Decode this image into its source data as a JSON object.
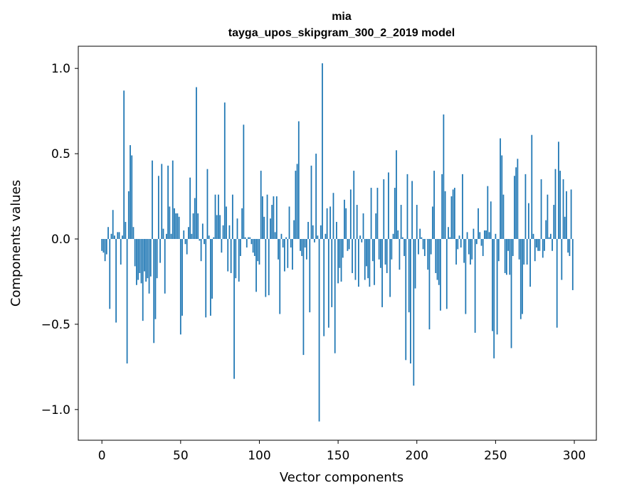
{
  "chart_data": {
    "type": "bar",
    "title_line1": "mia",
    "title_line2": "tayga_upos_skipgram_300_2_2019 model",
    "xlabel": "Vector components",
    "ylabel": "Components values",
    "xlim": [
      -15,
      314
    ],
    "ylim": [
      -1.18,
      1.13
    ],
    "xticks": [
      0,
      50,
      100,
      150,
      200,
      250,
      300
    ],
    "yticks": [
      1.0,
      0.5,
      0.0,
      -0.5,
      -1.0
    ],
    "ytick_labels": [
      "1.0",
      "0.5",
      "0.0",
      "−0.5",
      "−1.0"
    ],
    "bar_color": "#1f77b4",
    "values": [
      -0.07,
      -0.08,
      -0.13,
      -0.09,
      0.07,
      -0.41,
      0.03,
      0.17,
      0.02,
      -0.49,
      0.04,
      0.04,
      -0.15,
      0.02,
      0.87,
      0.1,
      -0.73,
      0.28,
      0.55,
      0.49,
      0.07,
      -0.16,
      -0.27,
      -0.24,
      -0.2,
      -0.26,
      -0.48,
      -0.19,
      -0.25,
      -0.23,
      -0.32,
      -0.22,
      0.46,
      -0.61,
      -0.47,
      -0.23,
      0.37,
      -0.14,
      0.44,
      0.06,
      -0.32,
      0.03,
      0.43,
      0.19,
      0.03,
      0.46,
      0.18,
      0.15,
      0.15,
      0.13,
      -0.56,
      -0.45,
      0.05,
      -0.03,
      -0.09,
      0.07,
      0.36,
      0.03,
      0.15,
      0.24,
      0.89,
      0.15,
      -0.01,
      -0.13,
      0.09,
      -0.03,
      -0.46,
      0.41,
      0.02,
      -0.45,
      -0.35,
      0.01,
      0.26,
      0.14,
      0.26,
      0.14,
      -0.08,
      0.08,
      0.8,
      0.19,
      -0.19,
      0.08,
      -0.2,
      0.26,
      -0.82,
      -0.23,
      0.12,
      -0.25,
      -0.1,
      0.18,
      0.67,
      0.01,
      -0.05,
      0.01,
      0.01,
      -0.03,
      -0.08,
      -0.1,
      -0.31,
      -0.13,
      -0.15,
      0.4,
      0.25,
      0.13,
      -0.34,
      0.26,
      -0.33,
      0.12,
      0.2,
      0.25,
      0.04,
      0.25,
      -0.12,
      -0.44,
      0.03,
      -0.05,
      -0.19,
      0.01,
      -0.17,
      0.19,
      -0.05,
      -0.18,
      0.11,
      0.4,
      0.44,
      0.69,
      -0.07,
      -0.1,
      -0.68,
      -0.05,
      -0.12,
      0.1,
      -0.43,
      0.43,
      0.08,
      -0.02,
      0.5,
      0.02,
      -1.07,
      0.08,
      1.03,
      -0.57,
      0.03,
      0.18,
      -0.52,
      0.19,
      -0.4,
      0.27,
      -0.67,
      0.1,
      -0.26,
      -0.17,
      -0.25,
      -0.11,
      0.23,
      0.18,
      -0.07,
      -0.06,
      0.29,
      -0.2,
      0.4,
      -0.24,
      0.2,
      -0.28,
      0.02,
      -0.02,
      0.15,
      -0.24,
      -0.16,
      -0.23,
      -0.28,
      0.3,
      -0.13,
      -0.27,
      0.15,
      0.3,
      -0.12,
      -0.17,
      -0.4,
      0.35,
      -0.15,
      -0.2,
      0.39,
      -0.34,
      -0.12,
      0.03,
      0.3,
      0.52,
      0.05,
      -0.18,
      0.2,
      0.01,
      -0.1,
      -0.71,
      0.38,
      -0.43,
      -0.73,
      0.34,
      -0.86,
      -0.29,
      0.2,
      -0.09,
      0.06,
      0.01,
      -0.06,
      -0.1,
      0.0,
      -0.18,
      -0.53,
      -0.09,
      0.19,
      0.4,
      -0.2,
      -0.24,
      -0.27,
      -0.42,
      0.38,
      0.73,
      0.28,
      -0.41,
      0.07,
      0.01,
      0.25,
      0.29,
      0.3,
      -0.15,
      -0.06,
      0.02,
      -0.05,
      0.38,
      -0.14,
      -0.44,
      0.04,
      -0.09,
      -0.15,
      -0.12,
      0.06,
      -0.55,
      -0.03,
      0.18,
      0.04,
      -0.04,
      -0.1,
      0.05,
      0.05,
      0.31,
      0.04,
      0.22,
      -0.54,
      -0.7,
      0.03,
      -0.56,
      -0.13,
      0.59,
      0.49,
      0.26,
      -0.2,
      -0.21,
      -0.07,
      -0.21,
      -0.64,
      -0.1,
      0.37,
      0.42,
      0.47,
      -0.12,
      -0.47,
      -0.44,
      -0.15,
      0.38,
      -0.15,
      0.21,
      -0.28,
      0.61,
      0.03,
      -0.13,
      -0.05,
      -0.07,
      -0.07,
      0.35,
      -0.11,
      -0.07,
      0.11,
      0.26,
      0.01,
      0.03,
      -0.07,
      0.2,
      0.41,
      -0.52,
      0.57,
      0.4,
      -0.24,
      0.35,
      0.13,
      0.28,
      -0.08,
      -0.1,
      0.29,
      -0.3
    ]
  }
}
